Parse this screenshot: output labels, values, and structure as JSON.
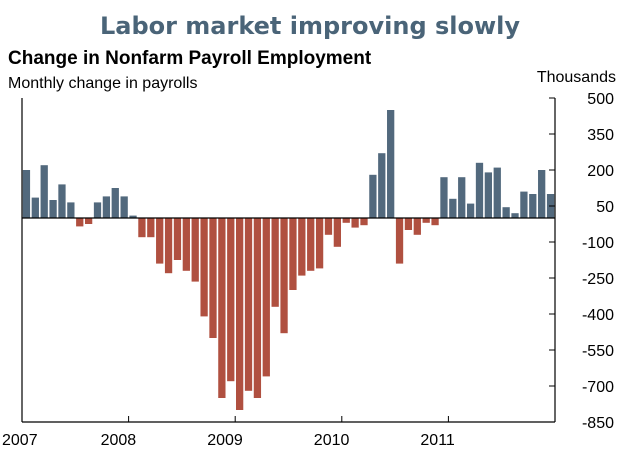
{
  "banner": "Labor market improving slowly",
  "chart_data": {
    "type": "bar",
    "title": "Change in Nonfarm Payroll Employment",
    "subtitle": "Monthly change in payrolls",
    "unit_label": "Thousands",
    "x_tick_labels": [
      "2007",
      "2008",
      "2009",
      "2010",
      "2011"
    ],
    "y_tick_labels": [
      "500",
      "350",
      "200",
      "50",
      "-100",
      "-250",
      "-400",
      "-550",
      "-700",
      "-850"
    ],
    "ylim": [
      -850,
      500
    ],
    "grid": false,
    "legend": "none",
    "categories": [
      "2007-01",
      "2007-02",
      "2007-03",
      "2007-04",
      "2007-05",
      "2007-06",
      "2007-07",
      "2007-08",
      "2007-09",
      "2007-10",
      "2007-11",
      "2007-12",
      "2008-01",
      "2008-02",
      "2008-03",
      "2008-04",
      "2008-05",
      "2008-06",
      "2008-07",
      "2008-08",
      "2008-09",
      "2008-10",
      "2008-11",
      "2008-12",
      "2009-01",
      "2009-02",
      "2009-03",
      "2009-04",
      "2009-05",
      "2009-06",
      "2009-07",
      "2009-08",
      "2009-09",
      "2009-10",
      "2009-11",
      "2009-12",
      "2010-01",
      "2010-02",
      "2010-03",
      "2010-04",
      "2010-05",
      "2010-06",
      "2010-07",
      "2010-08",
      "2010-09",
      "2010-10",
      "2010-11",
      "2010-12",
      "2011-01",
      "2011-02",
      "2011-03",
      "2011-04",
      "2011-05",
      "2011-06",
      "2011-07",
      "2011-08",
      "2011-09",
      "2011-10",
      "2011-11",
      "2011-12"
    ],
    "values": [
      200,
      85,
      220,
      75,
      140,
      65,
      -35,
      -25,
      65,
      90,
      125,
      90,
      10,
      -80,
      -80,
      -190,
      -230,
      -175,
      -220,
      -265,
      -410,
      -500,
      -750,
      -680,
      -800,
      -720,
      -750,
      -660,
      -370,
      -480,
      -300,
      -240,
      -220,
      -210,
      -70,
      -120,
      -20,
      -40,
      -30,
      180,
      270,
      450,
      -190,
      -50,
      -70,
      -20,
      -30,
      170,
      80,
      170,
      60,
      230,
      190,
      210,
      45,
      20,
      110,
      100,
      200,
      100
    ],
    "colors": {
      "positive": "#52697d",
      "negative": "#b05040",
      "banner": "#4a6478"
    }
  }
}
